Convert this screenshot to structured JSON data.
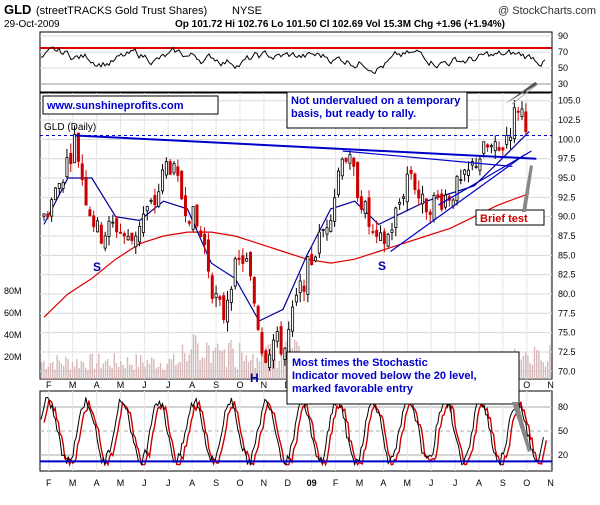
{
  "header": {
    "symbol": "GLD",
    "name": "(streetTRACKS Gold Trust Shares)",
    "exchange": "NYSE",
    "credit": "@ StockCharts.com",
    "date": "29-Oct-2009",
    "quote": "Op 101.72  Hi 102.76  Lo 101.50  Cl 102.69  Vol 15.3M  Chg +1.96 (+1.94%)",
    "quote_arrow_color": "#00aa00"
  },
  "website_label": "www.sunshineprofits.com",
  "main_panel_label": "GLD (Daily)",
  "annotations": {
    "rally_note": "Not undervalued on a temporary basis, but ready to rally.",
    "brief_test": "Brief test",
    "stochastic_note": "Most times the Stochastic Indicator moved below the 20 level, marked favorable entry points.",
    "pattern_labels": [
      "S",
      "H",
      "S"
    ]
  },
  "colors": {
    "candle_up": "#000000",
    "candle_down": "#cc0000",
    "ma_fast": "#000099",
    "ma_slow": "#dd0000",
    "trendline": "#0000cc",
    "overbought_line": "#dd0000",
    "oversold_line": "#0000cc",
    "brief_test_color": "#cc0000",
    "volume": "#d7b8b8"
  },
  "chart_data": [
    {
      "type": "candlestick",
      "panel": "price",
      "ylim": [
        69,
        106
      ],
      "y_ticks": [
        70.0,
        72.5,
        75.0,
        77.5,
        80.0,
        82.5,
        85.0,
        87.5,
        90.0,
        92.5,
        95.0,
        97.5,
        100.0,
        102.5,
        105.0
      ],
      "x_ticks": [
        "F",
        "M",
        "A",
        "M",
        "J",
        "J",
        "A",
        "S",
        "O",
        "N",
        "D",
        "09",
        "F",
        "M",
        "A",
        "M",
        "J",
        "J",
        "A",
        "S",
        "O",
        "N"
      ],
      "x_tick_bold_index": 11,
      "close_path_monthly": [
        {
          "m": 0,
          "v": 90
        },
        {
          "m": 0.6,
          "v": 94
        },
        {
          "m": 1.3,
          "v": 100
        },
        {
          "m": 1.8,
          "v": 92
        },
        {
          "m": 2.3,
          "v": 87.5
        },
        {
          "m": 3,
          "v": 89
        },
        {
          "m": 3.6,
          "v": 86.5
        },
        {
          "m": 4.1,
          "v": 90
        },
        {
          "m": 4.6,
          "v": 91.5
        },
        {
          "m": 5.2,
          "v": 97.5
        },
        {
          "m": 5.7,
          "v": 93
        },
        {
          "m": 6.2,
          "v": 90
        },
        {
          "m": 6.7,
          "v": 86.5
        },
        {
          "m": 7.1,
          "v": 80
        },
        {
          "m": 7.5,
          "v": 77
        },
        {
          "m": 7.8,
          "v": 82
        },
        {
          "m": 8.4,
          "v": 85
        },
        {
          "m": 8.8,
          "v": 79
        },
        {
          "m": 9.2,
          "v": 72
        },
        {
          "m": 9.6,
          "v": 74
        },
        {
          "m": 10.1,
          "v": 73
        },
        {
          "m": 10.5,
          "v": 78.5
        },
        {
          "m": 11,
          "v": 83
        },
        {
          "m": 11.6,
          "v": 87.5
        },
        {
          "m": 12.1,
          "v": 92
        },
        {
          "m": 12.5,
          "v": 99
        },
        {
          "m": 13,
          "v": 95
        },
        {
          "m": 13.4,
          "v": 91
        },
        {
          "m": 13.9,
          "v": 86
        },
        {
          "m": 14.4,
          "v": 87.5
        },
        {
          "m": 14.9,
          "v": 92
        },
        {
          "m": 15.3,
          "v": 96.5
        },
        {
          "m": 15.8,
          "v": 91.5
        },
        {
          "m": 16.4,
          "v": 92
        },
        {
          "m": 17,
          "v": 93
        },
        {
          "m": 17.6,
          "v": 94.5
        },
        {
          "m": 18.1,
          "v": 97.5
        },
        {
          "m": 18.6,
          "v": 99
        },
        {
          "m": 19,
          "v": 98
        },
        {
          "m": 19.5,
          "v": 101.5
        },
        {
          "m": 19.85,
          "v": 104.5
        },
        {
          "m": 20.1,
          "v": 103
        },
        {
          "m": 20.3,
          "v": 101.5
        }
      ],
      "moving_average_fast": [
        {
          "m": 0,
          "v": 89
        },
        {
          "m": 1,
          "v": 95
        },
        {
          "m": 2,
          "v": 95
        },
        {
          "m": 3,
          "v": 90
        },
        {
          "m": 4,
          "v": 89.5
        },
        {
          "m": 5,
          "v": 92
        },
        {
          "m": 6,
          "v": 91
        },
        {
          "m": 7,
          "v": 84
        },
        {
          "m": 8,
          "v": 82
        },
        {
          "m": 9,
          "v": 76.5
        },
        {
          "m": 10,
          "v": 78
        },
        {
          "m": 11,
          "v": 85
        },
        {
          "m": 12,
          "v": 91
        },
        {
          "m": 13,
          "v": 92
        },
        {
          "m": 14,
          "v": 89
        },
        {
          "m": 15,
          "v": 90.5
        },
        {
          "m": 16,
          "v": 92
        },
        {
          "m": 17,
          "v": 93
        },
        {
          "m": 18,
          "v": 94
        },
        {
          "m": 19,
          "v": 97
        },
        {
          "m": 20.3,
          "v": 101
        }
      ],
      "moving_average_slow": [
        {
          "m": 0,
          "v": 77
        },
        {
          "m": 1,
          "v": 80
        },
        {
          "m": 2,
          "v": 82
        },
        {
          "m": 3,
          "v": 84.5
        },
        {
          "m": 4,
          "v": 86.5
        },
        {
          "m": 5,
          "v": 87.5
        },
        {
          "m": 6,
          "v": 88
        },
        {
          "m": 7,
          "v": 88
        },
        {
          "m": 8,
          "v": 87.5
        },
        {
          "m": 9,
          "v": 86.5
        },
        {
          "m": 10,
          "v": 85.5
        },
        {
          "m": 11,
          "v": 84.5
        },
        {
          "m": 12,
          "v": 84
        },
        {
          "m": 13,
          "v": 84.5
        },
        {
          "m": 14,
          "v": 85.5
        },
        {
          "m": 15,
          "v": 86.5
        },
        {
          "m": 16,
          "v": 87.5
        },
        {
          "m": 17,
          "v": 88.5
        },
        {
          "m": 18,
          "v": 90
        },
        {
          "m": 19,
          "v": 91.5
        },
        {
          "m": 20.3,
          "v": 93
        }
      ],
      "trendlines": [
        {
          "from": {
            "m": 1.3,
            "v": 100.5
          },
          "to": {
            "m": 20.6,
            "v": 97.5
          }
        },
        {
          "from": {
            "m": 12.5,
            "v": 98.5
          },
          "to": {
            "m": 19.6,
            "v": 96.5
          }
        },
        {
          "from": {
            "m": 14.5,
            "v": 85.5
          },
          "to": {
            "m": 20.1,
            "v": 98
          }
        },
        {
          "from": {
            "m": 16.5,
            "v": 91.5
          },
          "to": {
            "m": 20.4,
            "v": 98.5
          }
        }
      ],
      "resistance_dashed": 100.5,
      "volume_axis": {
        "labels": [
          "20M",
          "40M",
          "60M",
          "80M"
        ],
        "values": [
          20,
          40,
          60,
          80
        ]
      }
    },
    {
      "type": "line",
      "panel": "momentum-top",
      "ylim": [
        20,
        95
      ],
      "y_ticks": [
        90,
        70,
        50,
        30
      ],
      "reference_levels": {
        "red": 75,
        "gray": 30
      }
    },
    {
      "type": "line",
      "panel": "stochastic",
      "name": "",
      "ylim": [
        0,
        100
      ],
      "y_ticks": [
        80,
        50,
        20
      ],
      "oversold_level": 12,
      "overbought_level": 85
    }
  ]
}
